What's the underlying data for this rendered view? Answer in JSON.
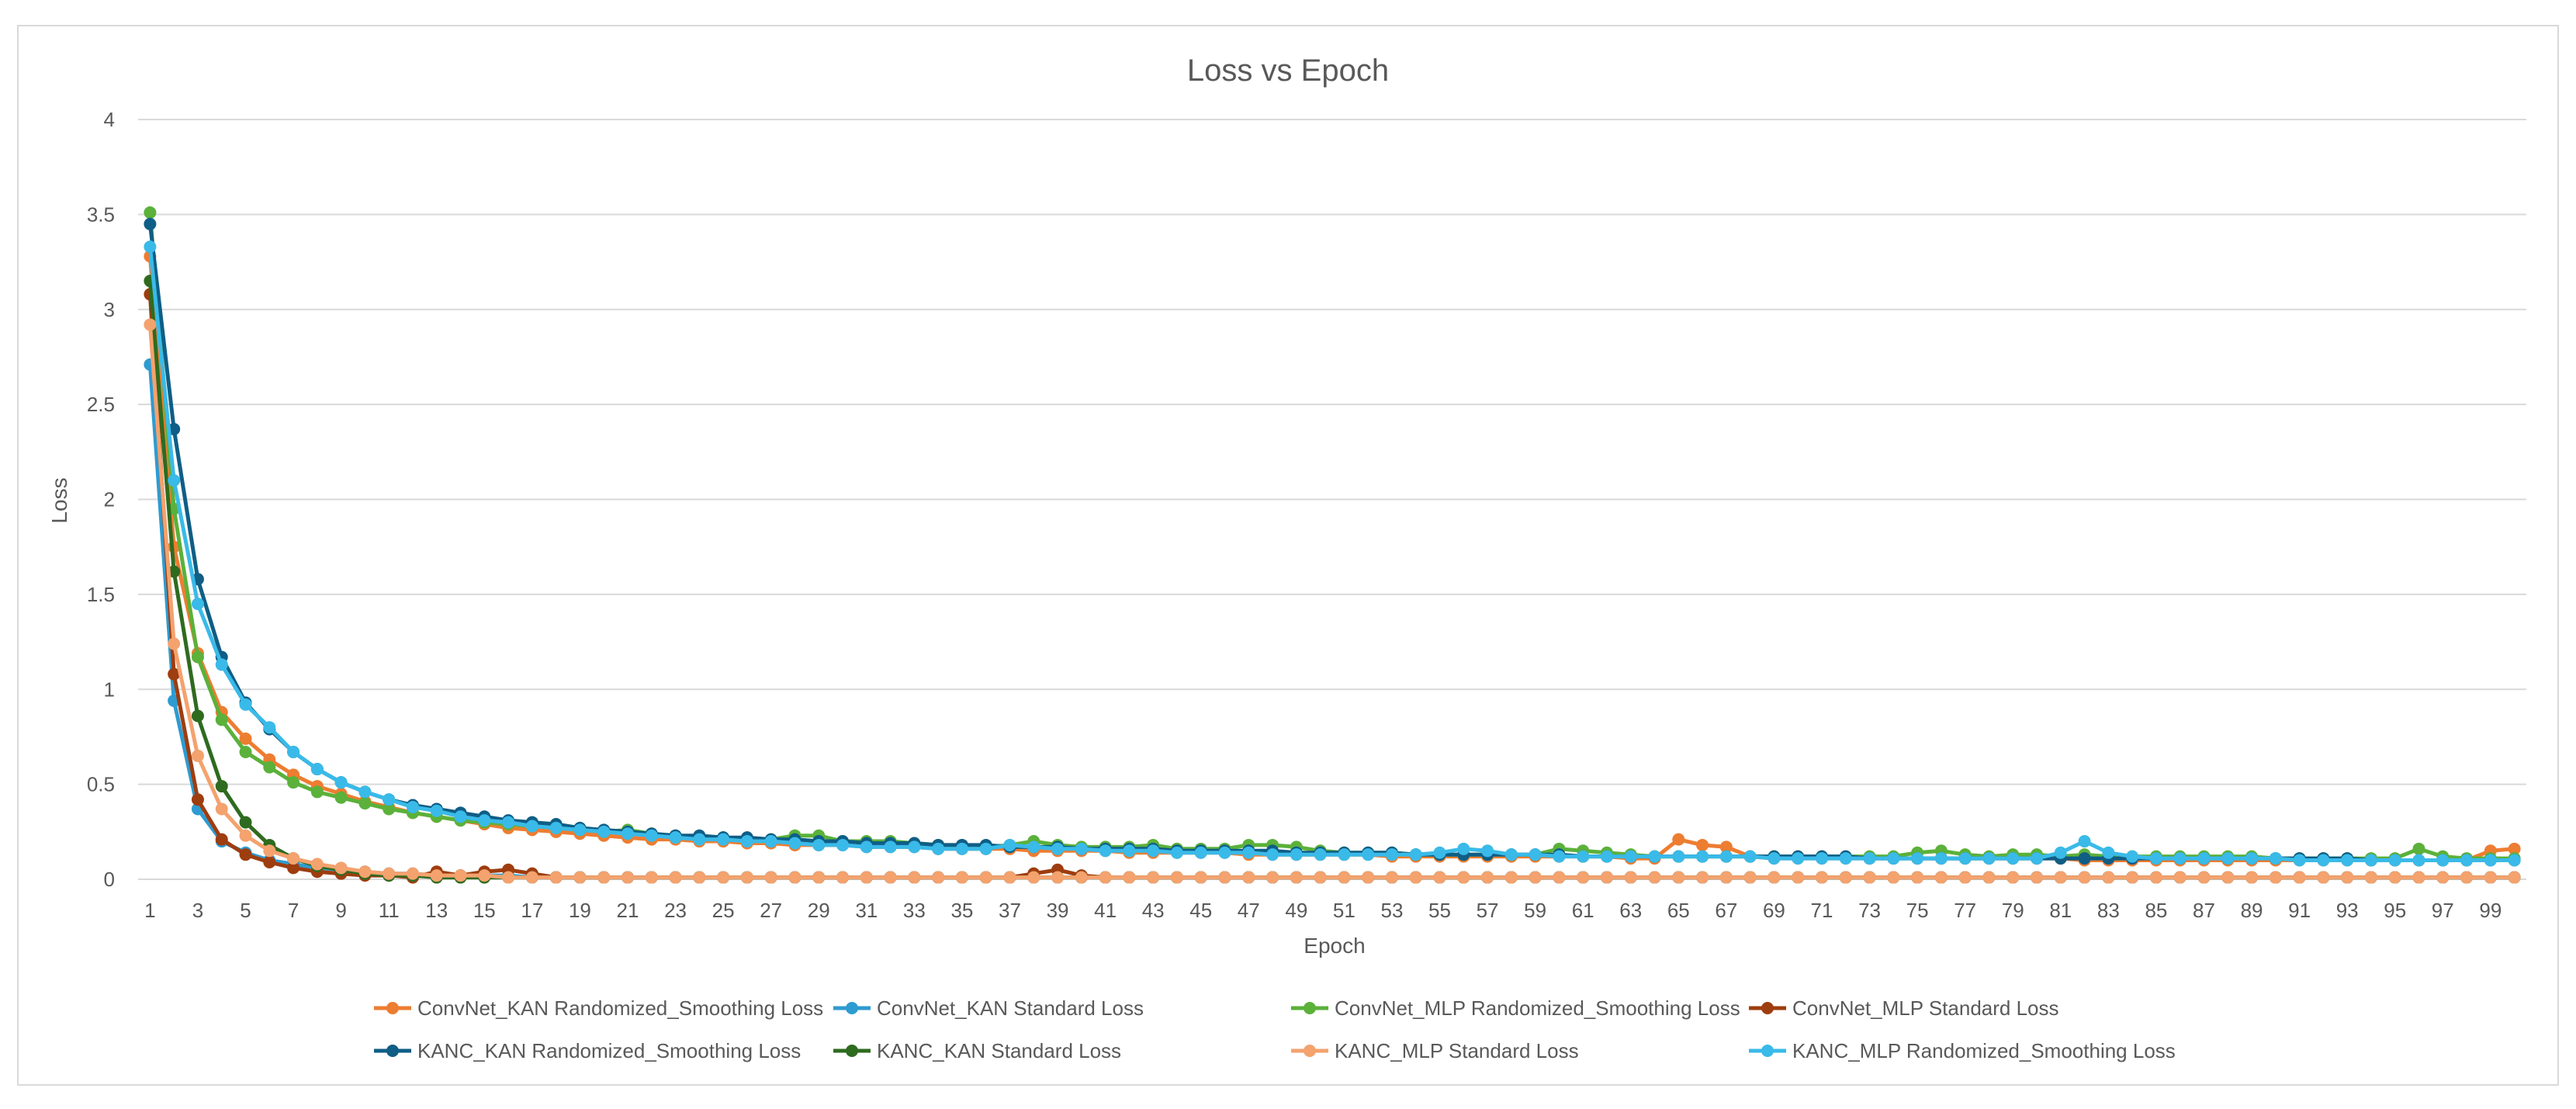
{
  "chart_data": {
    "type": "line",
    "title": "Loss vs Epoch",
    "xlabel": "Epoch",
    "ylabel": "Loss",
    "ylim": [
      0,
      4
    ],
    "yticks": [
      "0",
      "0.5",
      "1",
      "1.5",
      "2",
      "2.5",
      "3",
      "3.5",
      "4"
    ],
    "xlim": [
      1,
      100
    ],
    "xtick_labels": [
      "1",
      "3",
      "5",
      "7",
      "9",
      "11",
      "13",
      "15",
      "17",
      "19",
      "21",
      "23",
      "25",
      "27",
      "29",
      "31",
      "33",
      "35",
      "37",
      "39",
      "41",
      "43",
      "45",
      "47",
      "49",
      "51",
      "53",
      "55",
      "57",
      "59",
      "61",
      "63",
      "65",
      "67",
      "69",
      "71",
      "73",
      "75",
      "77",
      "79",
      "81",
      "83",
      "85",
      "87",
      "89",
      "91",
      "93",
      "95",
      "97",
      "99"
    ],
    "grid": "horizontal",
    "legend_position": "bottom",
    "series": [
      {
        "name": "ConvNet_KAN Randomized_Smoothing Loss",
        "color": "#ED7D31",
        "values": [
          3.28,
          1.75,
          1.19,
          0.88,
          0.74,
          0.63,
          0.55,
          0.49,
          0.45,
          0.41,
          0.38,
          0.35,
          0.33,
          0.31,
          0.29,
          0.27,
          0.26,
          0.25,
          0.24,
          0.23,
          0.22,
          0.21,
          0.21,
          0.2,
          0.2,
          0.19,
          0.19,
          0.18,
          0.18,
          0.18,
          0.17,
          0.17,
          0.17,
          0.16,
          0.16,
          0.16,
          0.16,
          0.15,
          0.15,
          0.15,
          0.15,
          0.14,
          0.14,
          0.14,
          0.14,
          0.14,
          0.13,
          0.13,
          0.13,
          0.13,
          0.13,
          0.13,
          0.12,
          0.12,
          0.12,
          0.12,
          0.12,
          0.12,
          0.12,
          0.12,
          0.12,
          0.12,
          0.11,
          0.11,
          0.21,
          0.18,
          0.17,
          0.12,
          0.11,
          0.11,
          0.11,
          0.11,
          0.11,
          0.11,
          0.11,
          0.11,
          0.11,
          0.11,
          0.11,
          0.11,
          0.11,
          0.1,
          0.1,
          0.1,
          0.1,
          0.1,
          0.1,
          0.1,
          0.1,
          0.1,
          0.1,
          0.1,
          0.1,
          0.1,
          0.1,
          0.1,
          0.1,
          0.1,
          0.15,
          0.16
        ]
      },
      {
        "name": "ConvNet_KAN Standard Loss",
        "color": "#2E9BD1",
        "values": [
          2.71,
          0.94,
          0.37,
          0.2,
          0.14,
          0.1,
          0.08,
          0.06,
          0.05,
          0.04,
          0.03,
          0.03,
          0.02,
          0.02,
          0.02,
          0.02,
          0.01,
          0.01,
          0.01,
          0.01,
          0.01,
          0.01,
          0.01,
          0.01,
          0.01,
          0.01,
          0.01,
          0.01,
          0.01,
          0.01,
          0.01,
          0.01,
          0.01,
          0.01,
          0.01,
          0.01,
          0.01,
          0.01,
          0.01,
          0.01,
          0.01,
          0.01,
          0.01,
          0.01,
          0.01,
          0.01,
          0.01,
          0.01,
          0.01,
          0.01,
          0.01,
          0.01,
          0.01,
          0.01,
          0.01,
          0.01,
          0.01,
          0.01,
          0.01,
          0.01,
          0.01,
          0.01,
          0.01,
          0.01,
          0.01,
          0.01,
          0.01,
          0.01,
          0.01,
          0.01,
          0.01,
          0.01,
          0.01,
          0.01,
          0.01,
          0.01,
          0.01,
          0.01,
          0.01,
          0.01,
          0.01,
          0.01,
          0.01,
          0.01,
          0.01,
          0.01,
          0.01,
          0.01,
          0.01,
          0.01,
          0.01,
          0.01,
          0.01,
          0.01,
          0.01,
          0.01,
          0.01,
          0.01,
          0.01,
          0.01
        ]
      },
      {
        "name": "ConvNet_MLP Randomized_Smoothing Loss",
        "color": "#5BB13A",
        "values": [
          3.51,
          1.95,
          1.17,
          0.84,
          0.67,
          0.59,
          0.51,
          0.46,
          0.43,
          0.4,
          0.37,
          0.35,
          0.33,
          0.31,
          0.3,
          0.29,
          0.28,
          0.27,
          0.26,
          0.25,
          0.26,
          0.24,
          0.23,
          0.22,
          0.22,
          0.21,
          0.21,
          0.23,
          0.23,
          0.2,
          0.2,
          0.2,
          0.19,
          0.18,
          0.18,
          0.17,
          0.18,
          0.2,
          0.18,
          0.17,
          0.17,
          0.17,
          0.18,
          0.16,
          0.16,
          0.16,
          0.18,
          0.18,
          0.17,
          0.15,
          0.14,
          0.14,
          0.14,
          0.13,
          0.13,
          0.13,
          0.13,
          0.13,
          0.13,
          0.16,
          0.15,
          0.14,
          0.13,
          0.12,
          0.12,
          0.12,
          0.12,
          0.12,
          0.12,
          0.12,
          0.12,
          0.12,
          0.12,
          0.12,
          0.14,
          0.15,
          0.13,
          0.12,
          0.13,
          0.13,
          0.12,
          0.13,
          0.12,
          0.12,
          0.12,
          0.12,
          0.12,
          0.12,
          0.12,
          0.11,
          0.11,
          0.11,
          0.11,
          0.11,
          0.11,
          0.16,
          0.12,
          0.11,
          0.11,
          0.11
        ]
      },
      {
        "name": "ConvNet_MLP Standard Loss",
        "color": "#9E3D0F",
        "values": [
          3.08,
          1.08,
          0.42,
          0.21,
          0.13,
          0.09,
          0.06,
          0.04,
          0.03,
          0.02,
          0.02,
          0.01,
          0.04,
          0.02,
          0.04,
          0.05,
          0.03,
          0.01,
          0.01,
          0.01,
          0.01,
          0.01,
          0.01,
          0.01,
          0.01,
          0.01,
          0.01,
          0.01,
          0.01,
          0.01,
          0.01,
          0.01,
          0.01,
          0.01,
          0.01,
          0.01,
          0.01,
          0.03,
          0.05,
          0.02,
          0.01,
          0.01,
          0.01,
          0.01,
          0.01,
          0.01,
          0.01,
          0.01,
          0.01,
          0.01,
          0.01,
          0.01,
          0.01,
          0.01,
          0.01,
          0.01,
          0.01,
          0.01,
          0.01,
          0.01,
          0.01,
          0.01,
          0.01,
          0.01,
          0.01,
          0.01,
          0.01,
          0.01,
          0.01,
          0.01,
          0.01,
          0.01,
          0.01,
          0.01,
          0.01,
          0.01,
          0.01,
          0.01,
          0.01,
          0.01,
          0.01,
          0.01,
          0.01,
          0.01,
          0.01,
          0.01,
          0.01,
          0.01,
          0.01,
          0.01,
          0.01,
          0.01,
          0.01,
          0.01,
          0.01,
          0.01,
          0.01,
          0.01,
          0.01,
          0.01
        ]
      },
      {
        "name": "KANC_KAN Randomized_Smoothing Loss",
        "color": "#0F5E86",
        "values": [
          3.45,
          2.37,
          1.58,
          1.17,
          0.93,
          0.79,
          0.67,
          0.58,
          0.51,
          0.46,
          0.42,
          0.39,
          0.37,
          0.35,
          0.33,
          0.31,
          0.3,
          0.29,
          0.27,
          0.26,
          0.25,
          0.24,
          0.23,
          0.23,
          0.22,
          0.22,
          0.21,
          0.21,
          0.2,
          0.2,
          0.19,
          0.19,
          0.19,
          0.18,
          0.18,
          0.18,
          0.17,
          0.17,
          0.17,
          0.16,
          0.16,
          0.16,
          0.16,
          0.15,
          0.15,
          0.15,
          0.15,
          0.15,
          0.14,
          0.14,
          0.14,
          0.14,
          0.14,
          0.13,
          0.13,
          0.13,
          0.13,
          0.13,
          0.13,
          0.13,
          0.12,
          0.12,
          0.12,
          0.12,
          0.12,
          0.12,
          0.12,
          0.12,
          0.12,
          0.12,
          0.12,
          0.12,
          0.11,
          0.11,
          0.11,
          0.11,
          0.11,
          0.11,
          0.11,
          0.11,
          0.11,
          0.11,
          0.11,
          0.11,
          0.11,
          0.11,
          0.11,
          0.11,
          0.11,
          0.11,
          0.11,
          0.11,
          0.11,
          0.1,
          0.1,
          0.1,
          0.1,
          0.1,
          0.1,
          0.1
        ]
      },
      {
        "name": "KANC_KAN Standard Loss",
        "color": "#2E6B1F",
        "values": [
          3.15,
          1.62,
          0.86,
          0.49,
          0.3,
          0.18,
          0.11,
          0.07,
          0.05,
          0.03,
          0.02,
          0.02,
          0.01,
          0.01,
          0.01,
          0.01,
          0.01,
          0.01,
          0.01,
          0.01,
          0.01,
          0.01,
          0.01,
          0.01,
          0.01,
          0.01,
          0.01,
          0.01,
          0.01,
          0.01,
          0.01,
          0.01,
          0.01,
          0.01,
          0.01,
          0.01,
          0.01,
          0.01,
          0.01,
          0.01,
          0.01,
          0.01,
          0.01,
          0.01,
          0.01,
          0.01,
          0.01,
          0.01,
          0.01,
          0.01,
          0.01,
          0.01,
          0.01,
          0.01,
          0.01,
          0.01,
          0.01,
          0.01,
          0.01,
          0.01,
          0.01,
          0.01,
          0.01,
          0.01,
          0.01,
          0.01,
          0.01,
          0.01,
          0.01,
          0.01,
          0.01,
          0.01,
          0.01,
          0.01,
          0.01,
          0.01,
          0.01,
          0.01,
          0.01,
          0.01,
          0.01,
          0.01,
          0.01,
          0.01,
          0.01,
          0.01,
          0.01,
          0.01,
          0.01,
          0.01,
          0.01,
          0.01,
          0.01,
          0.01,
          0.01,
          0.01,
          0.01,
          0.01,
          0.01,
          0.01
        ]
      },
      {
        "name": "KANC_MLP Standard Loss",
        "color": "#F4A26E",
        "values": [
          2.92,
          1.24,
          0.65,
          0.37,
          0.23,
          0.15,
          0.11,
          0.08,
          0.06,
          0.04,
          0.03,
          0.03,
          0.02,
          0.02,
          0.02,
          0.01,
          0.01,
          0.01,
          0.01,
          0.01,
          0.01,
          0.01,
          0.01,
          0.01,
          0.01,
          0.01,
          0.01,
          0.01,
          0.01,
          0.01,
          0.01,
          0.01,
          0.01,
          0.01,
          0.01,
          0.01,
          0.01,
          0.01,
          0.01,
          0.01,
          0.01,
          0.01,
          0.01,
          0.01,
          0.01,
          0.01,
          0.01,
          0.01,
          0.01,
          0.01,
          0.01,
          0.01,
          0.01,
          0.01,
          0.01,
          0.01,
          0.01,
          0.01,
          0.01,
          0.01,
          0.01,
          0.01,
          0.01,
          0.01,
          0.01,
          0.01,
          0.01,
          0.01,
          0.01,
          0.01,
          0.01,
          0.01,
          0.01,
          0.01,
          0.01,
          0.01,
          0.01,
          0.01,
          0.01,
          0.01,
          0.01,
          0.01,
          0.01,
          0.01,
          0.01,
          0.01,
          0.01,
          0.01,
          0.01,
          0.01,
          0.01,
          0.01,
          0.01,
          0.01,
          0.01,
          0.01,
          0.01,
          0.01,
          0.01,
          0.01
        ]
      },
      {
        "name": "KANC_MLP Randomized_Smoothing Loss",
        "color": "#3ABAE8",
        "values": [
          3.33,
          2.1,
          1.45,
          1.13,
          0.92,
          0.8,
          0.67,
          0.58,
          0.51,
          0.46,
          0.42,
          0.38,
          0.36,
          0.33,
          0.31,
          0.3,
          0.28,
          0.27,
          0.26,
          0.25,
          0.24,
          0.23,
          0.22,
          0.21,
          0.21,
          0.2,
          0.2,
          0.19,
          0.18,
          0.18,
          0.17,
          0.17,
          0.17,
          0.16,
          0.16,
          0.16,
          0.18,
          0.17,
          0.16,
          0.16,
          0.15,
          0.15,
          0.15,
          0.14,
          0.14,
          0.14,
          0.14,
          0.13,
          0.13,
          0.13,
          0.13,
          0.13,
          0.13,
          0.13,
          0.14,
          0.16,
          0.15,
          0.13,
          0.13,
          0.12,
          0.12,
          0.12,
          0.12,
          0.12,
          0.12,
          0.12,
          0.12,
          0.12,
          0.11,
          0.11,
          0.11,
          0.11,
          0.11,
          0.11,
          0.11,
          0.11,
          0.11,
          0.11,
          0.11,
          0.11,
          0.14,
          0.2,
          0.14,
          0.12,
          0.11,
          0.11,
          0.11,
          0.11,
          0.11,
          0.11,
          0.1,
          0.1,
          0.1,
          0.1,
          0.1,
          0.1,
          0.1,
          0.1,
          0.1,
          0.1
        ]
      }
    ]
  }
}
